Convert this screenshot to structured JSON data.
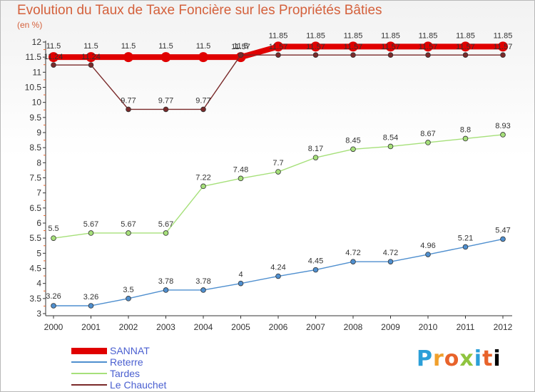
{
  "chart_data": {
    "type": "line",
    "title": "Evolution du Taux de Taxe Foncière sur les Propriétés Bâties",
    "subtitle": "(en %)",
    "x": [
      "2000",
      "2001",
      "2002",
      "2003",
      "2004",
      "2005",
      "2006",
      "2007",
      "2008",
      "2009",
      "2010",
      "2011",
      "2012"
    ],
    "yticks": [
      "3",
      "3.5",
      "4",
      "4.5",
      "5",
      "5.5",
      "6",
      "6.5",
      "7",
      "7.5",
      "8",
      "8.5",
      "9",
      "9.5",
      "10",
      "10.5",
      "11",
      "11.5",
      "12"
    ],
    "ylim": [
      3,
      12
    ],
    "grid": false,
    "legend_position": "bottom-left",
    "series": [
      {
        "name": "SANNAT",
        "color": "#e00000",
        "values": [
          11.5,
          11.5,
          11.5,
          11.5,
          11.5,
          11.5,
          11.85,
          11.85,
          11.85,
          11.85,
          11.85,
          11.85,
          11.85
        ],
        "labels": [
          "11.5",
          "11.5",
          "11.5",
          "11.5",
          "11.5",
          "11.5",
          "11.85",
          "11.85",
          "11.85",
          "11.85",
          "11.85",
          "11.85",
          "11.85"
        ]
      },
      {
        "name": "Reterre",
        "color": "#4f8fcf",
        "values": [
          3.26,
          3.26,
          3.5,
          3.78,
          3.78,
          4,
          4.24,
          4.45,
          4.72,
          4.72,
          4.96,
          5.21,
          5.47
        ],
        "labels": [
          "3.26",
          "3.26",
          "3.5",
          "3.78",
          "3.78",
          "4",
          "4.24",
          "4.45",
          "4.72",
          "4.72",
          "4.96",
          "5.21",
          "5.47"
        ]
      },
      {
        "name": "Tardes",
        "color": "#a6e07a",
        "values": [
          5.5,
          5.67,
          5.67,
          5.67,
          7.22,
          7.48,
          7.7,
          8.17,
          8.45,
          8.54,
          8.67,
          8.8,
          8.93
        ],
        "labels": [
          "5.5",
          "5.67",
          "5.67",
          "5.67",
          "7.22",
          "7.48",
          "7.7",
          "8.17",
          "8.45",
          "8.54",
          "8.67",
          "8.8",
          "8.93"
        ]
      },
      {
        "name": "Le Chauchet",
        "color": "#7a2a2a",
        "values": [
          11.24,
          11.24,
          9.77,
          9.77,
          9.77,
          11.57,
          11.57,
          11.57,
          11.57,
          11.57,
          11.57,
          11.57,
          11.57
        ],
        "labels": [
          "11.24",
          "11.24",
          "9.77",
          "9.77",
          "9.77",
          "11.57",
          "11.57",
          "11.57",
          "11.57",
          "11.57",
          "11.57",
          "11.57",
          "11.57"
        ]
      }
    ]
  },
  "brand": {
    "letters": [
      "P",
      "r",
      "o",
      "x",
      "i",
      "t",
      "i"
    ]
  }
}
